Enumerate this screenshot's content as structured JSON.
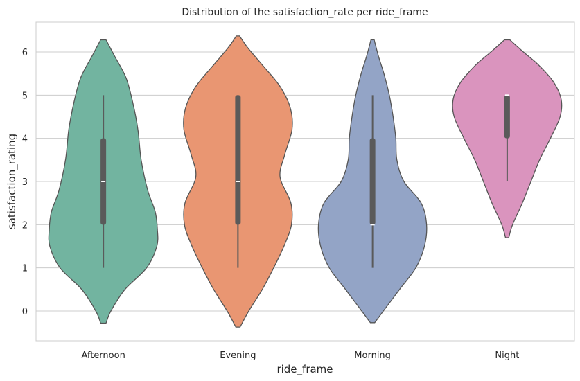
{
  "chart_data": {
    "type": "violin",
    "title": "Distribution of the satisfaction_rate per ride_frame",
    "xlabel": "ride_frame",
    "ylabel": "satisfaction_rating",
    "ylim": [
      -0.7,
      6.75
    ],
    "yticks": [
      0,
      1,
      2,
      3,
      4,
      5,
      6
    ],
    "grid": "horizontal",
    "categories": [
      "Afternoon",
      "Evening",
      "Morning",
      "Night"
    ],
    "violins": [
      {
        "category": "Afternoon",
        "color": "#72b4a0",
        "median": 3,
        "q1": 2,
        "q3": 4,
        "whisker_low": 1,
        "whisker_high": 5,
        "density": [
          [
            -0.28,
            0.05
          ],
          [
            0,
            0.14
          ],
          [
            0.5,
            0.4
          ],
          [
            1,
            0.8
          ],
          [
            1.5,
            0.99
          ],
          [
            1.9,
            1.0
          ],
          [
            2.3,
            0.96
          ],
          [
            2.8,
            0.82
          ],
          [
            3.5,
            0.7
          ],
          [
            4.2,
            0.64
          ],
          [
            4.8,
            0.55
          ],
          [
            5.4,
            0.42
          ],
          [
            5.9,
            0.21
          ],
          [
            6.28,
            0.05
          ]
        ]
      },
      {
        "category": "Evening",
        "color": "#e99672",
        "median": 3,
        "q1": 2,
        "q3": 5,
        "whisker_low": 1,
        "whisker_high": 5,
        "density": [
          [
            -0.37,
            0.04
          ],
          [
            0,
            0.2
          ],
          [
            0.5,
            0.45
          ],
          [
            1,
            0.66
          ],
          [
            1.5,
            0.85
          ],
          [
            2,
            0.99
          ],
          [
            2.5,
            0.98
          ],
          [
            3.1,
            0.78
          ],
          [
            3.6,
            0.86
          ],
          [
            4.2,
            1.0
          ],
          [
            4.7,
            0.97
          ],
          [
            5.2,
            0.78
          ],
          [
            5.7,
            0.45
          ],
          [
            6.1,
            0.18
          ],
          [
            6.37,
            0.03
          ]
        ]
      },
      {
        "category": "Morning",
        "color": "#93a4c6",
        "median": 2,
        "q1": 2,
        "q3": 4,
        "whisker_low": 1,
        "whisker_high": 5,
        "density": [
          [
            -0.27,
            0.04
          ],
          [
            0,
            0.2
          ],
          [
            0.5,
            0.5
          ],
          [
            1,
            0.8
          ],
          [
            1.5,
            0.96
          ],
          [
            2,
            1.0
          ],
          [
            2.5,
            0.9
          ],
          [
            3,
            0.58
          ],
          [
            3.5,
            0.45
          ],
          [
            4,
            0.43
          ],
          [
            4.5,
            0.38
          ],
          [
            5,
            0.31
          ],
          [
            5.5,
            0.21
          ],
          [
            5.9,
            0.11
          ],
          [
            6.28,
            0.03
          ]
        ]
      },
      {
        "category": "Night",
        "color": "#da94be",
        "median": 5,
        "q1": 4,
        "q3": 5,
        "whisker_low": 3,
        "whisker_high": 5,
        "density": [
          [
            1.7,
            0.03
          ],
          [
            2,
            0.1
          ],
          [
            2.5,
            0.28
          ],
          [
            3,
            0.44
          ],
          [
            3.5,
            0.6
          ],
          [
            4,
            0.8
          ],
          [
            4.5,
            0.98
          ],
          [
            4.9,
            1.0
          ],
          [
            5.3,
            0.86
          ],
          [
            5.7,
            0.58
          ],
          [
            6,
            0.3
          ],
          [
            6.28,
            0.05
          ]
        ]
      }
    ]
  }
}
